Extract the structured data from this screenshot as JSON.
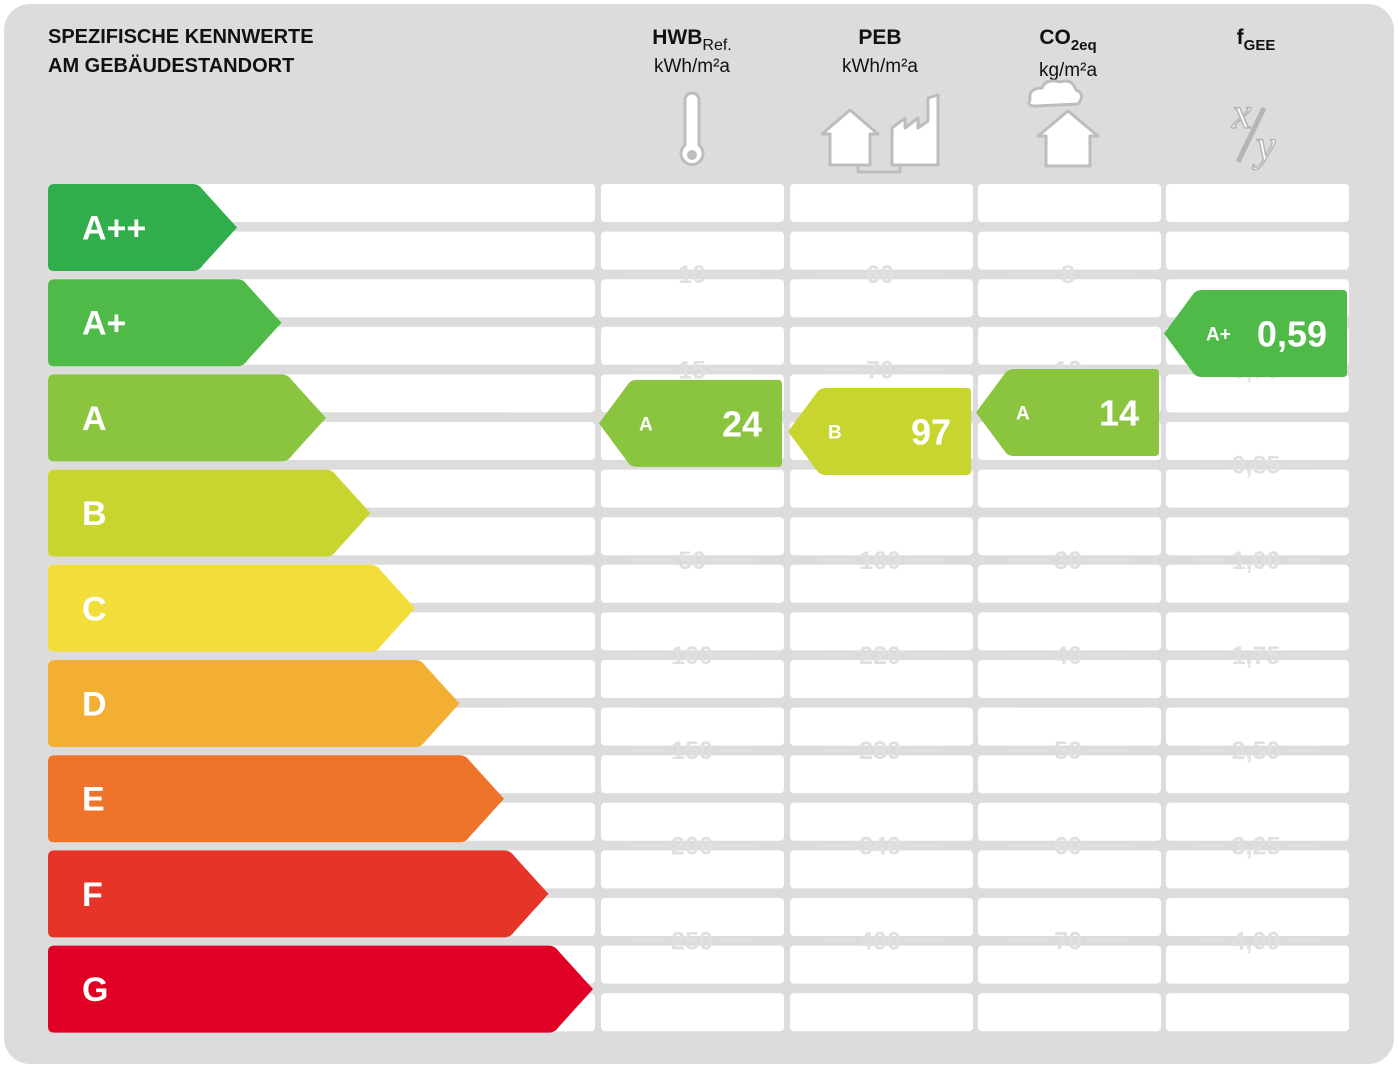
{
  "title_lines": [
    "SPEZIFISCHE KENNWERTE",
    "AM GEBÄUDESTANDORT"
  ],
  "colors": {
    "panel": "#dddcdd",
    "row": "#ffffff",
    "tick_text": "#e0e0e0",
    "A++": "#31ad4b",
    "A+": "#4fba48",
    "A": "#8bc53f",
    "B": "#c8d52e",
    "C": "#f2dd3a",
    "D": "#f3ae34",
    "E": "#ef742b",
    "F": "#e73429",
    "G": "#e00025"
  },
  "chart_data": {
    "type": "table",
    "classes": [
      "A++",
      "A+",
      "A",
      "B",
      "C",
      "D",
      "E",
      "F",
      "G"
    ],
    "columns": [
      {
        "id": "hwb",
        "label_main": "HWB",
        "label_sub": "Ref.",
        "unit": "kWh/m²a",
        "icon": "thermometer-icon",
        "thresholds": [
          "10",
          "15",
          "",
          "50",
          "100",
          "150",
          "200",
          "250"
        ],
        "value": "24",
        "class": "A"
      },
      {
        "id": "peb",
        "label_main": "PEB",
        "label_sub": "",
        "unit": "kWh/m²a",
        "icon": "house-factory-icon",
        "thresholds": [
          "60",
          "70",
          "",
          "160",
          "220",
          "280",
          "340",
          "400"
        ],
        "value": "97",
        "class": "B"
      },
      {
        "id": "co2",
        "label_main": "CO",
        "label_sub": "2eq",
        "unit": "kg/m²a",
        "icon": "house-smoke-icon",
        "thresholds": [
          "8",
          "10",
          "",
          "30",
          "40",
          "50",
          "60",
          "70"
        ],
        "value": "14",
        "class": "A"
      },
      {
        "id": "fgee",
        "label_main": "f",
        "label_sub": "GEE",
        "unit": "",
        "icon": "ratio-icon",
        "icon_text": "x/y",
        "thresholds": [
          "",
          "0,70",
          "0,85",
          "1,00",
          "1,75",
          "2,50",
          "3,25",
          "4,00"
        ],
        "value": "0,59",
        "class": "A+"
      }
    ]
  }
}
